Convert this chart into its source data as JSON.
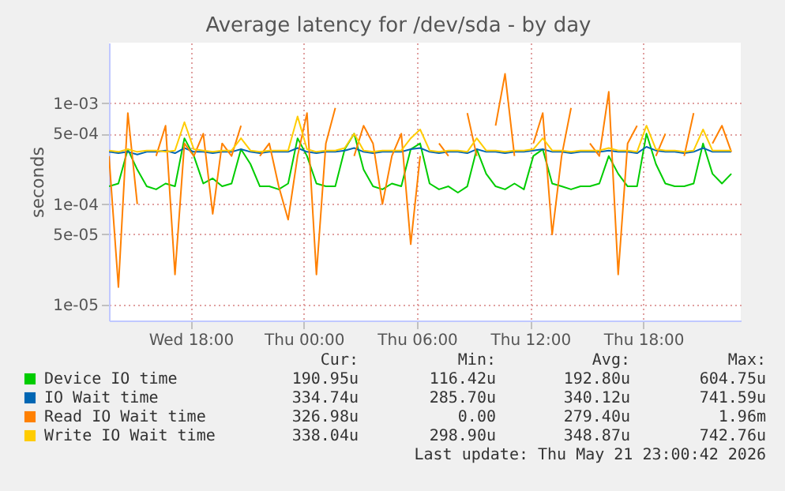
{
  "chart_data": {
    "type": "line",
    "title": "Average latency for /dev/sda - by day",
    "ylabel": "seconds",
    "log": "y",
    "grid": true,
    "legend": "bottom",
    "xlim": [
      "2026-05-20T13:40",
      "2026-05-21T23:10"
    ],
    "xticks": [
      {
        "value": "2026-05-20T18:00",
        "label": "Wed 18:00"
      },
      {
        "value": "2026-05-21T00:00",
        "label": "Thu 00:00"
      },
      {
        "value": "2026-05-21T06:00",
        "label": "Thu 06:00"
      },
      {
        "value": "2026-05-21T12:00",
        "label": "Thu 12:00"
      },
      {
        "value": "2026-05-21T18:00",
        "label": "Thu 18:00"
      }
    ],
    "ylim": [
      7e-06,
      0.004
    ],
    "yticks": [
      {
        "value": 1e-05,
        "label": "1e-05"
      },
      {
        "value": 5e-05,
        "label": "5e-05"
      },
      {
        "value": 0.0001,
        "label": "1e-04"
      },
      {
        "value": 0.0005,
        "label": "5e-04"
      },
      {
        "value": 0.001,
        "label": "1e-03"
      }
    ],
    "x": [
      "2026-05-20T13:40",
      "2026-05-20T14:10",
      "2026-05-20T14:40",
      "2026-05-20T15:10",
      "2026-05-20T15:40",
      "2026-05-20T16:10",
      "2026-05-20T16:40",
      "2026-05-20T17:10",
      "2026-05-20T17:40",
      "2026-05-20T18:10",
      "2026-05-20T18:40",
      "2026-05-20T19:10",
      "2026-05-20T19:40",
      "2026-05-20T20:10",
      "2026-05-20T20:40",
      "2026-05-20T21:10",
      "2026-05-20T21:40",
      "2026-05-20T22:10",
      "2026-05-20T22:40",
      "2026-05-20T23:10",
      "2026-05-20T23:40",
      "2026-05-21T00:10",
      "2026-05-21T00:40",
      "2026-05-21T01:10",
      "2026-05-21T01:40",
      "2026-05-21T02:10",
      "2026-05-21T02:40",
      "2026-05-21T03:10",
      "2026-05-21T03:40",
      "2026-05-21T04:10",
      "2026-05-21T04:40",
      "2026-05-21T05:10",
      "2026-05-21T05:40",
      "2026-05-21T06:10",
      "2026-05-21T06:40",
      "2026-05-21T07:10",
      "2026-05-21T07:40",
      "2026-05-21T08:10",
      "2026-05-21T08:40",
      "2026-05-21T09:10",
      "2026-05-21T09:40",
      "2026-05-21T10:10",
      "2026-05-21T10:40",
      "2026-05-21T11:10",
      "2026-05-21T11:40",
      "2026-05-21T12:10",
      "2026-05-21T12:40",
      "2026-05-21T13:10",
      "2026-05-21T13:40",
      "2026-05-21T14:10",
      "2026-05-21T14:40",
      "2026-05-21T15:10",
      "2026-05-21T15:40",
      "2026-05-21T16:10",
      "2026-05-21T16:40",
      "2026-05-21T17:10",
      "2026-05-21T17:40",
      "2026-05-21T18:10",
      "2026-05-21T18:40",
      "2026-05-21T19:10",
      "2026-05-21T19:40",
      "2026-05-21T20:10",
      "2026-05-21T20:40",
      "2026-05-21T21:10",
      "2026-05-21T21:40",
      "2026-05-21T22:10",
      "2026-05-21T22:40"
    ],
    "series": [
      {
        "name": "Device IO time",
        "color": "#00cc00",
        "values": [
          0.00015,
          0.00016,
          0.00035,
          0.00022,
          0.00015,
          0.00014,
          0.00016,
          0.00015,
          0.00045,
          0.0003,
          0.00016,
          0.00018,
          0.00015,
          0.00016,
          0.00035,
          0.00025,
          0.00015,
          0.00015,
          0.00014,
          0.00016,
          0.00045,
          0.0003,
          0.00016,
          0.00015,
          0.00015,
          0.00035,
          0.0005,
          0.00022,
          0.00015,
          0.00014,
          0.00016,
          0.00015,
          0.00035,
          0.0004,
          0.00016,
          0.00014,
          0.00015,
          0.00013,
          0.00015,
          0.00035,
          0.0002,
          0.00015,
          0.00014,
          0.00016,
          0.00014,
          0.0003,
          0.00035,
          0.00016,
          0.00015,
          0.00014,
          0.00015,
          0.00015,
          0.00016,
          0.0003,
          0.0002,
          0.00015,
          0.00015,
          0.0005,
          0.00025,
          0.00016,
          0.00015,
          0.00015,
          0.00016,
          0.0004,
          0.0002,
          0.00016,
          0.0002
        ]
      },
      {
        "name": "IO Wait time",
        "color": "#0066b3",
        "values": [
          0.00033,
          0.00032,
          0.00033,
          0.00031,
          0.00033,
          0.00033,
          0.00034,
          0.00032,
          0.00036,
          0.00033,
          0.00033,
          0.00032,
          0.00033,
          0.00033,
          0.00035,
          0.00033,
          0.00032,
          0.00033,
          0.00033,
          0.00033,
          0.00036,
          0.00033,
          0.00032,
          0.00033,
          0.00033,
          0.00034,
          0.00036,
          0.00033,
          0.00032,
          0.00033,
          0.00033,
          0.00033,
          0.00035,
          0.00036,
          0.00033,
          0.00032,
          0.00033,
          0.00033,
          0.00032,
          0.00035,
          0.00033,
          0.00033,
          0.00032,
          0.00033,
          0.00033,
          0.00034,
          0.00035,
          0.00033,
          0.00033,
          0.00032,
          0.00033,
          0.00033,
          0.00033,
          0.00034,
          0.00033,
          0.00033,
          0.00032,
          0.00037,
          0.00034,
          0.00033,
          0.00033,
          0.00032,
          0.00033,
          0.00036,
          0.00033,
          0.00033,
          0.00033
        ]
      },
      {
        "name": "Read IO Wait time",
        "color": "#ff8000",
        "values": [
          0.0003,
          1.5e-05,
          0.0008,
          0.0001,
          null,
          0.0003,
          0.0006,
          2e-05,
          0.0004,
          0.0003,
          0.0005,
          8e-05,
          0.0004,
          0.0003,
          0.0006,
          null,
          0.0003,
          0.0004,
          0.00015,
          7e-05,
          0.0003,
          0.0008,
          2e-05,
          0.0004,
          0.0009,
          null,
          0.0003,
          0.0006,
          0.0004,
          0.0001,
          0.0003,
          0.0005,
          4e-05,
          0.0003,
          null,
          0.0004,
          0.0003,
          null,
          0.0008,
          0.0003,
          null,
          0.0006,
          0.00196,
          0.0003,
          null,
          0.0004,
          0.0008,
          5e-05,
          0.0003,
          0.0009,
          null,
          0.0004,
          0.0003,
          0.0013,
          2e-05,
          0.0004,
          0.0006,
          null,
          0.0003,
          0.0005,
          null,
          0.0003,
          0.0008,
          null,
          0.0004,
          0.0006,
          0.00033
        ]
      },
      {
        "name": "Write IO Wait time",
        "color": "#ffcc00",
        "values": [
          0.00034,
          0.00033,
          0.00035,
          0.00033,
          0.00034,
          0.00034,
          0.00033,
          0.00034,
          0.00065,
          0.00035,
          0.00034,
          0.00033,
          0.00034,
          0.00034,
          0.00045,
          0.00034,
          0.00033,
          0.00034,
          0.00034,
          0.00034,
          0.00074,
          0.00035,
          0.00033,
          0.00034,
          0.00034,
          0.00036,
          0.0005,
          0.00034,
          0.00033,
          0.00034,
          0.00034,
          0.00034,
          0.00045,
          0.00055,
          0.00034,
          0.00033,
          0.00034,
          0.00034,
          0.00033,
          0.00045,
          0.00034,
          0.00034,
          0.00033,
          0.00034,
          0.00034,
          0.00035,
          0.00045,
          0.00034,
          0.00034,
          0.00033,
          0.00034,
          0.00034,
          0.00034,
          0.00036,
          0.00034,
          0.00034,
          0.00033,
          0.0006,
          0.00035,
          0.00034,
          0.00034,
          0.00033,
          0.00034,
          0.00055,
          0.00034,
          0.00034,
          0.00034
        ]
      }
    ],
    "annotations": [
      "Cur:",
      "Min:",
      "Avg:",
      "Max:",
      "190.95u",
      "116.42u",
      "192.80u",
      "604.75u",
      "334.74u",
      "285.70u",
      "340.12u",
      "741.59u",
      "326.98u",
      "0.00",
      "279.40u",
      "1.96m",
      "338.04u",
      "298.90u",
      "348.87u",
      "742.76u",
      "Last update: Thu May 21 23:00:42 2026"
    ]
  }
}
